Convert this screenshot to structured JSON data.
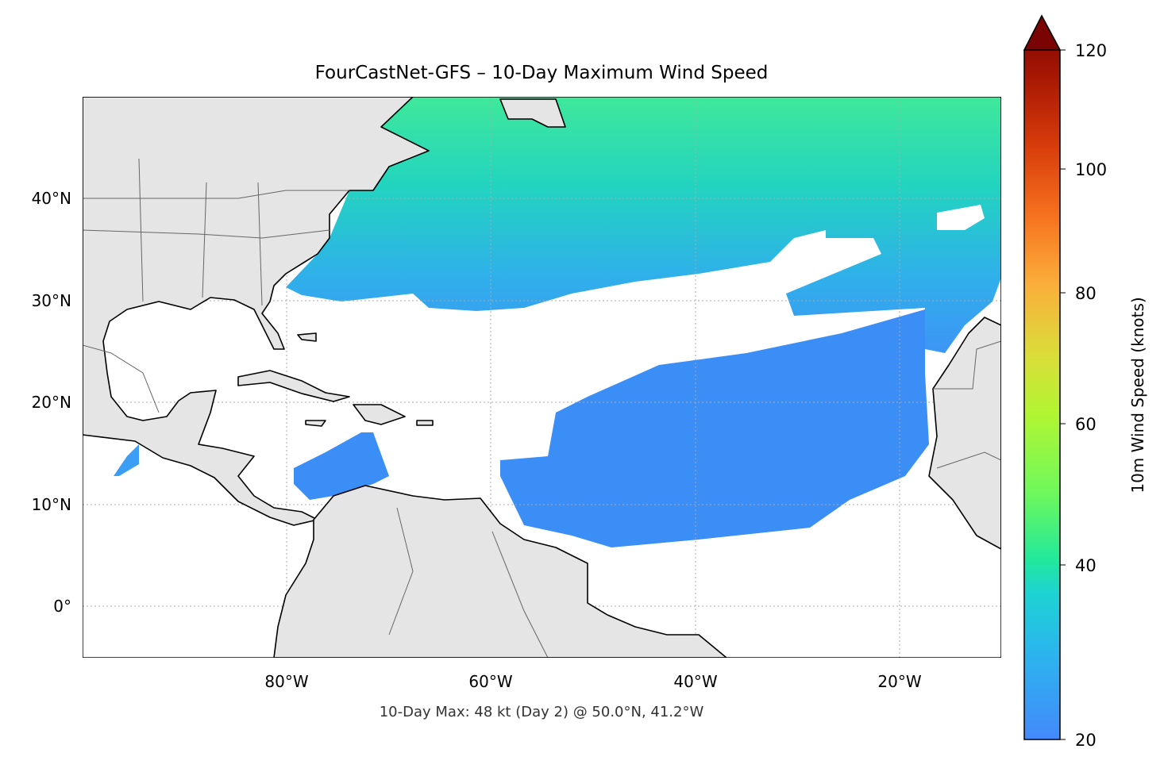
{
  "title": "FourCastNet-GFS – 10-Day Maximum Wind Speed",
  "footer": "10-Day Max: 48 kt (Day 2) @ 50.0°N, 41.2°W",
  "chart_data": {
    "type": "heatmap",
    "title": "FourCastNet-GFS – 10-Day Maximum Wind Speed",
    "extent": {
      "lon": [
        -100,
        -10
      ],
      "lat": [
        -5,
        50
      ]
    },
    "x_ticks": [
      {
        "value": -80,
        "label": "80°W"
      },
      {
        "value": -60,
        "label": "60°W"
      },
      {
        "value": -40,
        "label": "40°W"
      },
      {
        "value": -20,
        "label": "20°W"
      }
    ],
    "y_ticks": [
      {
        "value": 40,
        "label": "40°N"
      },
      {
        "value": 30,
        "label": "30°N"
      },
      {
        "value": 20,
        "label": "20°N"
      },
      {
        "value": 10,
        "label": "10°N"
      },
      {
        "value": 0,
        "label": "0°"
      }
    ],
    "grid": true,
    "colorbar": {
      "label": "10m Wind Speed (knots)",
      "range": [
        20,
        120
      ],
      "extend": "max",
      "ticks": [
        "20",
        "40",
        "60",
        "80",
        "100",
        "120"
      ],
      "colormap": "turbo"
    },
    "max_annotation": {
      "value_kt": 48,
      "day": 2,
      "lat": 50.0,
      "lon": -41.2
    },
    "colors": {
      "land": "#e5e5e5",
      "low": "#4287f5",
      "mid": "#22d8b0",
      "high": "#7cf552"
    }
  }
}
